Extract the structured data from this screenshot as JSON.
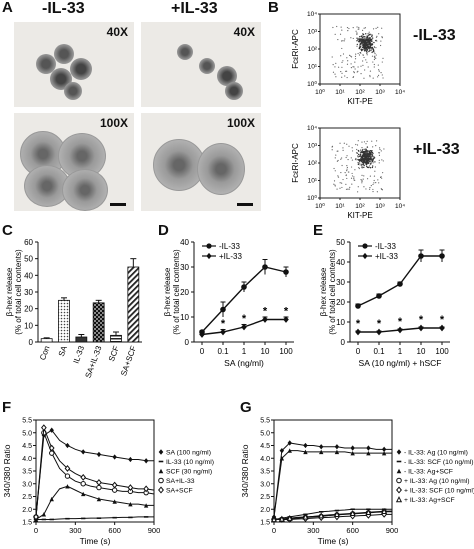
{
  "panel_a": {
    "label": "A",
    "col_left": "-IL-33",
    "col_right": "+IL-33",
    "mag_top_left": "40X",
    "mag_top_right": "40X",
    "mag_bottom_left": "100X",
    "mag_bottom_right": "100X"
  },
  "panel_b": {
    "label": "B",
    "cond_top": "-IL-33",
    "cond_bottom": "+IL-33",
    "ylabel": "FcεRI-APC",
    "xlabel": "KIT-PE"
  },
  "chart_data": [
    {
      "id": "B-top",
      "type": "scatter",
      "xlabel": "KIT-PE",
      "ylabel": "FcεRI-APC",
      "xlim": [
        1,
        10000
      ],
      "ylim": [
        1,
        10000
      ],
      "scale": "log",
      "xticks": [
        "10⁰",
        "10¹",
        "10²",
        "10³",
        "10⁴"
      ],
      "yticks": [
        "10⁰",
        "10¹",
        "10²",
        "10³",
        "10⁴"
      ],
      "population_center": [
        200,
        200
      ]
    },
    {
      "id": "B-bottom",
      "type": "scatter",
      "xlabel": "KIT-PE",
      "ylabel": "FcεRI-APC",
      "xlim": [
        1,
        10000
      ],
      "ylim": [
        1,
        10000
      ],
      "scale": "log",
      "xticks": [
        "10⁰",
        "10¹",
        "10²",
        "10³",
        "10⁴"
      ],
      "yticks": [
        "10⁰",
        "10¹",
        "10²",
        "10³",
        "10⁴"
      ],
      "population_center": [
        200,
        200
      ]
    },
    {
      "id": "C",
      "type": "bar",
      "ylabel": "β-hex release\n(% of total cell contents)",
      "ylim": [
        0,
        60
      ],
      "yticks": [
        0,
        10,
        20,
        30,
        40,
        50,
        60
      ],
      "categories": [
        "Con",
        "SA",
        "IL-33",
        "SA+IL-33",
        "SCF",
        "SA+SCF"
      ],
      "values": [
        2,
        25,
        3,
        23.5,
        4,
        45
      ],
      "errors": [
        0.5,
        1.5,
        1.5,
        1.5,
        2,
        5
      ],
      "fills": [
        "#ffffff",
        "dots",
        "#333333",
        "checker",
        "stripe",
        "diag"
      ]
    },
    {
      "id": "D",
      "type": "line",
      "ylabel": "β-hex release\n(% of total cell contents)",
      "xlabel": "SA (ng/ml)",
      "ylim": [
        0,
        40
      ],
      "yticks": [
        0,
        10,
        20,
        30,
        40
      ],
      "categories": [
        "0",
        "0.1",
        "1",
        "10",
        "100"
      ],
      "series": [
        {
          "name": "-IL-33",
          "values": [
            4,
            13,
            22,
            30,
            28
          ],
          "errors": [
            0.5,
            3,
            2,
            3,
            2
          ],
          "marker": "circle"
        },
        {
          "name": "+IL-33",
          "values": [
            3,
            4,
            6,
            9,
            9
          ],
          "errors": [
            0.5,
            1,
            1,
            1,
            1
          ],
          "marker": "diamond"
        }
      ],
      "annotations": [
        "*",
        "*",
        "*",
        "*"
      ]
    },
    {
      "id": "E",
      "type": "line",
      "ylabel": "β-hex release\n(% of total cell contents)",
      "xlabel": "SA (10 ng/ml) + hSCF",
      "ylim": [
        0,
        50
      ],
      "yticks": [
        0,
        10,
        20,
        30,
        40,
        50
      ],
      "categories": [
        "0",
        "0.1",
        "1",
        "10",
        "100"
      ],
      "series": [
        {
          "name": "-IL-33",
          "values": [
            18,
            23,
            29,
            43,
            43
          ],
          "errors": [
            1,
            1,
            1,
            3,
            3
          ],
          "marker": "circle"
        },
        {
          "name": "+IL-33",
          "values": [
            5,
            5,
            6,
            7,
            7
          ],
          "errors": [
            0.5,
            0.5,
            0.5,
            0.5,
            0.5
          ],
          "marker": "diamond"
        }
      ],
      "annotations": [
        "*",
        "*",
        "*",
        "*",
        "*"
      ]
    },
    {
      "id": "F",
      "type": "line",
      "ylabel": "340/380 Ratio",
      "xlabel": "Time (s)",
      "xlim": [
        0,
        900
      ],
      "ylim": [
        1.5,
        5.5
      ],
      "xticks": [
        0,
        300,
        600,
        900
      ],
      "yticks": [
        1.5,
        2.0,
        2.5,
        3.0,
        3.5,
        4.0,
        4.5,
        5.0,
        5.5
      ],
      "x": [
        0,
        60,
        120,
        180,
        240,
        300,
        360,
        420,
        480,
        540,
        600,
        660,
        720,
        780,
        840,
        900
      ],
      "series": [
        {
          "name": "SA (100 ng/ml)",
          "marker": "filled-diamond",
          "values": [
            1.7,
            4.9,
            5.1,
            4.7,
            4.5,
            4.35,
            4.25,
            4.2,
            4.15,
            4.1,
            4.05,
            4.0,
            3.95,
            3.95,
            3.9,
            3.9
          ]
        },
        {
          "name": "IL-33 (10 ng/ml)",
          "marker": "dash",
          "values": [
            1.6,
            1.6,
            1.6,
            1.62,
            1.63,
            1.63,
            1.64,
            1.65,
            1.65,
            1.66,
            1.67,
            1.68,
            1.68,
            1.7,
            1.7,
            1.7
          ]
        },
        {
          "name": "SCF (30 ng/ml)",
          "marker": "filled-triangle",
          "values": [
            1.6,
            1.8,
            2.4,
            2.8,
            2.9,
            2.75,
            2.6,
            2.5,
            2.4,
            2.35,
            2.3,
            2.25,
            2.2,
            2.2,
            2.15,
            2.15
          ]
        },
        {
          "name": "SA+IL-33",
          "marker": "open-circle",
          "values": [
            1.7,
            5.0,
            4.2,
            3.6,
            3.3,
            3.1,
            3.0,
            2.9,
            2.85,
            2.8,
            2.75,
            2.7,
            2.7,
            2.65,
            2.65,
            2.6
          ]
        },
        {
          "name": "SA+SCF",
          "marker": "open-diamond",
          "values": [
            1.7,
            5.2,
            4.4,
            3.9,
            3.6,
            3.4,
            3.25,
            3.15,
            3.05,
            3.0,
            2.95,
            2.9,
            2.85,
            2.8,
            2.8,
            2.75
          ]
        }
      ]
    },
    {
      "id": "G",
      "type": "line",
      "ylabel": "340/380 Ratio",
      "xlabel": "Time (s)",
      "xlim": [
        0,
        900
      ],
      "ylim": [
        1.5,
        5.5
      ],
      "xticks": [
        0,
        300,
        600,
        900
      ],
      "yticks": [
        1.5,
        2.0,
        2.5,
        3.0,
        3.5,
        4.0,
        4.5,
        5.0,
        5.5
      ],
      "x": [
        0,
        60,
        120,
        180,
        240,
        300,
        360,
        420,
        480,
        540,
        600,
        660,
        720,
        780,
        840,
        900
      ],
      "series": [
        {
          "name": "- IL-33: Ag (10 ng/ml)",
          "marker": "filled-diamond",
          "values": [
            1.7,
            4.3,
            4.6,
            4.55,
            4.5,
            4.5,
            4.45,
            4.45,
            4.45,
            4.4,
            4.4,
            4.4,
            4.4,
            4.35,
            4.35,
            4.35
          ]
        },
        {
          "name": "- IL-33: SCF (10 ng/ml)",
          "marker": "dash",
          "values": [
            1.6,
            1.65,
            1.7,
            1.75,
            1.8,
            1.85,
            1.9,
            1.92,
            1.95,
            1.97,
            2.0,
            2.0,
            2.0,
            2.0,
            2.0,
            2.0
          ]
        },
        {
          "name": "- IL-33: Ag+SCF",
          "marker": "filled-triangle",
          "values": [
            1.7,
            4.0,
            4.3,
            4.3,
            4.25,
            4.25,
            4.25,
            4.25,
            4.25,
            4.25,
            4.2,
            4.2,
            4.2,
            4.2,
            4.2,
            4.2
          ]
        },
        {
          "name": "+ IL-33: Ag (10 ng/ml)",
          "marker": "open-circle",
          "values": [
            1.6,
            1.6,
            1.62,
            1.65,
            1.68,
            1.7,
            1.72,
            1.75,
            1.78,
            1.8,
            1.82,
            1.84,
            1.86,
            1.88,
            1.9,
            1.9
          ]
        },
        {
          "name": "+ IL-33: SCF (10 ng/ml)",
          "marker": "open-diamond",
          "values": [
            1.6,
            1.6,
            1.6,
            1.62,
            1.63,
            1.65,
            1.67,
            1.68,
            1.7,
            1.72,
            1.73,
            1.75,
            1.76,
            1.78,
            1.8,
            1.8
          ]
        },
        {
          "name": "+ IL-33: Ag+SCF",
          "marker": "open-triangle",
          "values": [
            1.6,
            1.62,
            1.65,
            1.68,
            1.7,
            1.72,
            1.75,
            1.78,
            1.8,
            1.82,
            1.84,
            1.86,
            1.88,
            1.9,
            1.92,
            1.93
          ]
        }
      ]
    }
  ],
  "panel_labels": {
    "c": "C",
    "d": "D",
    "e": "E",
    "f": "F",
    "g": "G"
  }
}
